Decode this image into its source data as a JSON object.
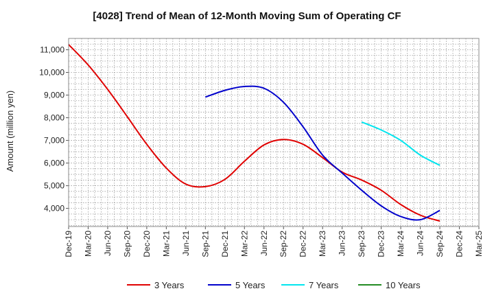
{
  "chart_data": {
    "type": "line",
    "title": "[4028]  Trend of Mean of 12-Month Moving Sum of Operating CF",
    "xlabel": "",
    "ylabel": "Amount (million yen)",
    "ylim": [
      3200,
      11500
    ],
    "yticks": [
      4000,
      5000,
      6000,
      7000,
      8000,
      9000,
      10000,
      11000
    ],
    "ytick_labels": [
      "4,000",
      "5,000",
      "6,000",
      "7,000",
      "8,000",
      "9,000",
      "10,000",
      "11,000"
    ],
    "x_categories": [
      "Dec-19",
      "Mar-20",
      "Jun-20",
      "Sep-20",
      "Dec-20",
      "Mar-21",
      "Jun-21",
      "Sep-21",
      "Dec-21",
      "Mar-22",
      "Jun-22",
      "Sep-22",
      "Dec-22",
      "Mar-23",
      "Jun-23",
      "Sep-23",
      "Dec-23",
      "Mar-24",
      "Jun-24",
      "Sep-24",
      "Dec-24",
      "Mar-25"
    ],
    "grid": true,
    "legend_position": "bottom",
    "series": [
      {
        "name": "3 Years",
        "color": "#e00000",
        "points": [
          [
            0,
            11230
          ],
          [
            1,
            10330
          ],
          [
            2,
            9250
          ],
          [
            3,
            8050
          ],
          [
            4,
            6830
          ],
          [
            5,
            5780
          ],
          [
            6,
            5070
          ],
          [
            7,
            4960
          ],
          [
            8,
            5280
          ],
          [
            9,
            6080
          ],
          [
            10,
            6800
          ],
          [
            11,
            7040
          ],
          [
            12,
            6830
          ],
          [
            13,
            6240
          ],
          [
            14,
            5600
          ],
          [
            15,
            5250
          ],
          [
            16,
            4800
          ],
          [
            17,
            4170
          ],
          [
            18,
            3700
          ],
          [
            19,
            3440
          ]
        ]
      },
      {
        "name": "5 Years",
        "color": "#0000cc",
        "points": [
          [
            7,
            8910
          ],
          [
            8,
            9210
          ],
          [
            9,
            9380
          ],
          [
            10,
            9300
          ],
          [
            11,
            8680
          ],
          [
            12,
            7600
          ],
          [
            13,
            6350
          ],
          [
            14,
            5560
          ],
          [
            15,
            4800
          ],
          [
            16,
            4110
          ],
          [
            17,
            3640
          ],
          [
            18,
            3500
          ],
          [
            19,
            3910
          ]
        ]
      },
      {
        "name": "7 Years",
        "color": "#00e5ee",
        "points": [
          [
            15,
            7810
          ],
          [
            16,
            7460
          ],
          [
            17,
            7000
          ],
          [
            18,
            6350
          ],
          [
            19,
            5900
          ]
        ]
      },
      {
        "name": "10 Years",
        "color": "#228b22",
        "points": []
      }
    ]
  }
}
